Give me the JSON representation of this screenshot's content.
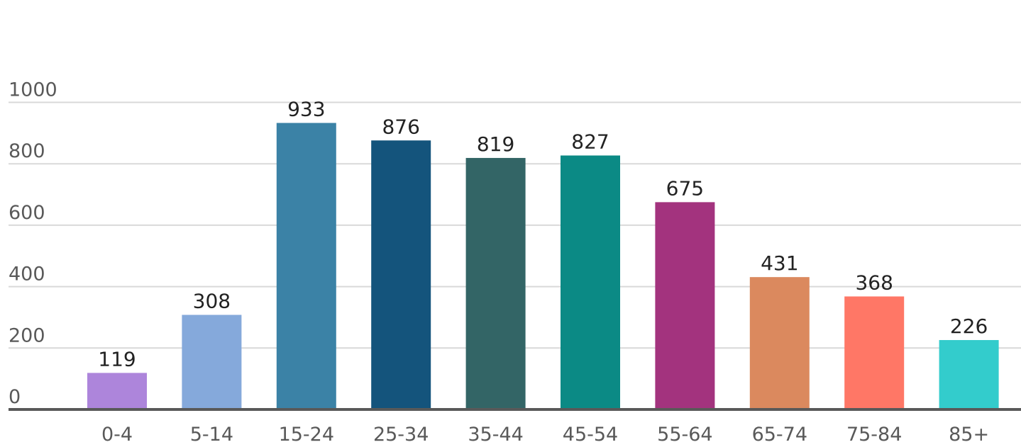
{
  "chart_data": {
    "type": "bar",
    "title": "",
    "xlabel": "",
    "ylabel": "",
    "categories": [
      "0-4",
      "5-14",
      "15-24",
      "25-34",
      "35-44",
      "45-54",
      "55-64",
      "65-74",
      "75-84",
      "85+"
    ],
    "values": [
      119,
      308,
      933,
      876,
      819,
      827,
      675,
      431,
      368,
      226
    ],
    "bar_colors": [
      "#ad85db",
      "#85a9db",
      "#3b82a6",
      "#14547c",
      "#336566",
      "#0b8a85",
      "#a3337e",
      "#db895e",
      "#ff7766",
      "#33cccc"
    ],
    "ylim": [
      0,
      1000
    ],
    "yticks": [
      0,
      200,
      400,
      600,
      800,
      1000
    ],
    "grid": true,
    "legend": "none",
    "data_labels": true
  }
}
